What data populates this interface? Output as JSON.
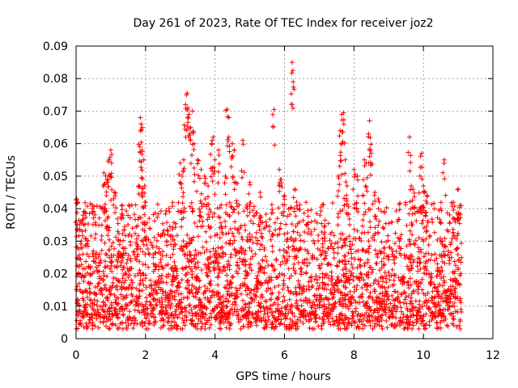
{
  "chart_data": {
    "type": "scatter",
    "title": "Day 261 of 2023, Rate Of TEC Index for receiver joz2",
    "xlabel": "GPS time / hours",
    "ylabel": "ROTI / TECUs",
    "xlim": [
      0,
      12
    ],
    "ylim": [
      0,
      0.09
    ],
    "x_ticks": [
      0,
      2,
      4,
      6,
      8,
      10,
      12
    ],
    "x_tick_labels": [
      "0",
      "2",
      "4",
      "6",
      "8",
      "10",
      "12"
    ],
    "y_ticks": [
      0,
      0.01,
      0.02,
      0.03,
      0.04,
      0.05,
      0.06,
      0.07,
      0.08,
      0.09
    ],
    "y_tick_labels": [
      "0",
      "0.01",
      "0.02",
      "0.03",
      "0.04",
      "0.05",
      "0.06",
      "0.07",
      "0.08",
      "0.09"
    ],
    "grid": true,
    "marker": "+",
    "color": "#ff0000",
    "series": [
      {
        "name": "ROTI",
        "x_range": [
          0,
          11.1
        ],
        "typical_range": [
          0.005,
          0.03
        ],
        "points": [
          [
            0.02,
            0.043
          ],
          [
            0.05,
            0.042
          ],
          [
            0.1,
            0.035
          ],
          [
            0.15,
            0.03
          ],
          [
            0.2,
            0.038
          ],
          [
            0.8,
            0.051
          ],
          [
            0.85,
            0.05
          ],
          [
            0.9,
            0.049
          ],
          [
            0.95,
            0.055
          ],
          [
            1.0,
            0.058
          ],
          [
            1.02,
            0.054
          ],
          [
            0.87,
            0.044
          ],
          [
            1.1,
            0.045
          ],
          [
            1.2,
            0.033
          ],
          [
            1.85,
            0.068
          ],
          [
            1.87,
            0.066
          ],
          [
            1.86,
            0.064
          ],
          [
            1.9,
            0.058
          ],
          [
            1.95,
            0.055
          ],
          [
            1.8,
            0.047
          ],
          [
            1.9,
            0.045
          ],
          [
            2.0,
            0.042
          ],
          [
            3.0,
            0.054
          ],
          [
            3.05,
            0.05
          ],
          [
            3.1,
            0.055
          ],
          [
            3.15,
            0.072
          ],
          [
            3.2,
            0.0755
          ],
          [
            3.22,
            0.071
          ],
          [
            3.25,
            0.069
          ],
          [
            3.3,
            0.065
          ],
          [
            3.35,
            0.07
          ],
          [
            3.4,
            0.06
          ],
          [
            3.5,
            0.055
          ],
          [
            3.6,
            0.052
          ],
          [
            3.7,
            0.05
          ],
          [
            3.8,
            0.047
          ],
          [
            3.9,
            0.06
          ],
          [
            3.95,
            0.062
          ],
          [
            4.0,
            0.055
          ],
          [
            4.1,
            0.058
          ],
          [
            4.35,
            0.0705
          ],
          [
            4.4,
            0.068
          ],
          [
            4.5,
            0.06
          ],
          [
            4.55,
            0.058
          ],
          [
            4.8,
            0.061
          ],
          [
            4.3,
            0.05
          ],
          [
            4.6,
            0.048
          ],
          [
            5.0,
            0.048
          ],
          [
            5.3,
            0.045
          ],
          [
            5.7,
            0.0705
          ],
          [
            5.85,
            0.052
          ],
          [
            5.9,
            0.049
          ],
          [
            6.0,
            0.044
          ],
          [
            6.22,
            0.085
          ],
          [
            6.24,
            0.0825
          ],
          [
            6.3,
            0.046
          ],
          [
            6.35,
            0.042
          ],
          [
            7.6,
            0.064
          ],
          [
            7.65,
            0.069
          ],
          [
            7.7,
            0.0695
          ],
          [
            7.62,
            0.06
          ],
          [
            7.75,
            0.055
          ],
          [
            7.55,
            0.05
          ],
          [
            7.8,
            0.047
          ],
          [
            8.0,
            0.052
          ],
          [
            8.1,
            0.05
          ],
          [
            8.3,
            0.055
          ],
          [
            8.35,
            0.054
          ],
          [
            8.45,
            0.067
          ],
          [
            8.42,
            0.063
          ],
          [
            8.5,
            0.057
          ],
          [
            8.6,
            0.045
          ],
          [
            8.7,
            0.043
          ],
          [
            9.6,
            0.062
          ],
          [
            9.65,
            0.047
          ],
          [
            9.7,
            0.046
          ],
          [
            9.9,
            0.05
          ],
          [
            9.95,
            0.057
          ],
          [
            10.0,
            0.047
          ],
          [
            10.05,
            0.045
          ],
          [
            10.1,
            0.044
          ],
          [
            10.6,
            0.055
          ],
          [
            11.0,
            0.046
          ],
          [
            11.05,
            0.041
          ],
          [
            10.5,
            0.04
          ]
        ]
      }
    ]
  }
}
